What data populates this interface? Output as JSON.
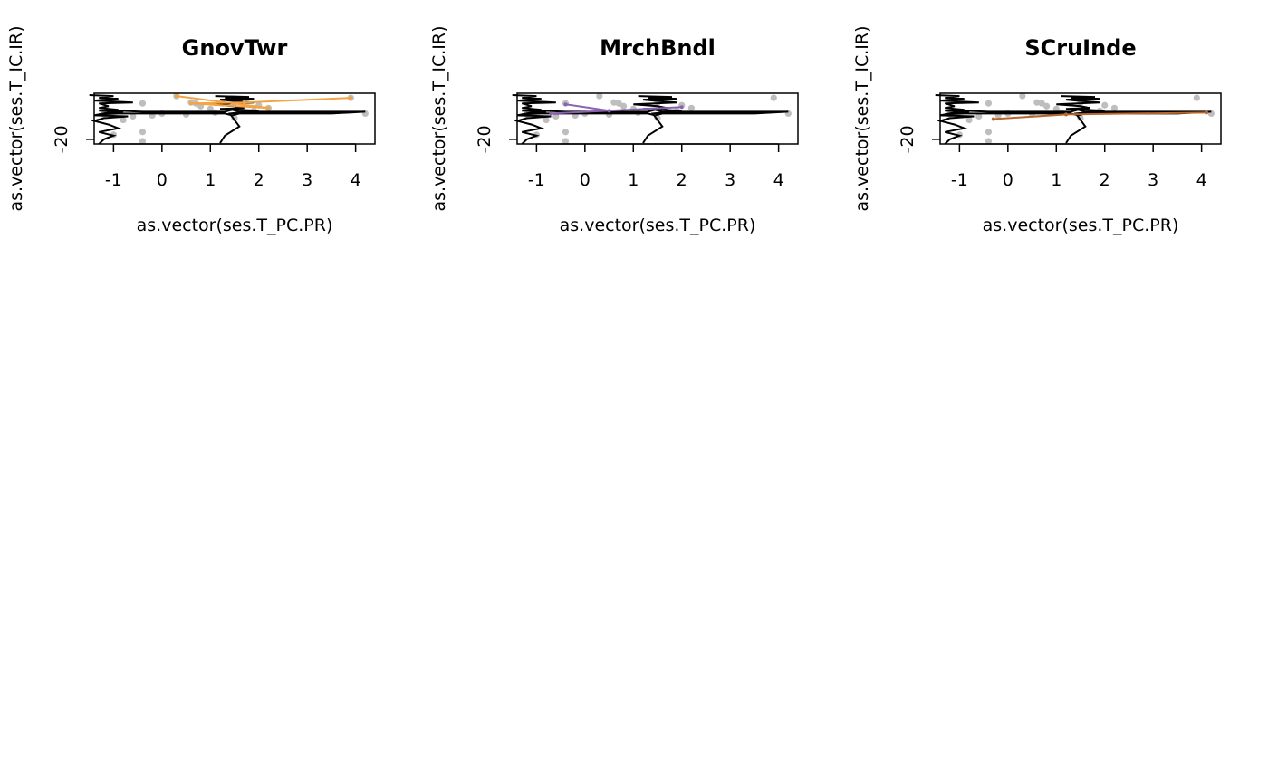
{
  "chart_data": [
    {
      "type": "scatter",
      "title": "GnovTwr",
      "xlabel": "as.vector(ses.T_PC.PR)",
      "ylabel": "as.vector(ses.T_IC.IR)",
      "xlim": [
        -1.4,
        4.4
      ],
      "ylim": [
        -25,
        30
      ],
      "x_ticks": [
        "-1",
        "0",
        "1",
        "2",
        "3",
        "4"
      ],
      "y_ticks": [
        "-20"
      ],
      "highlight_color": "#F5A443",
      "highlight_x": [
        0.3,
        2.2,
        0.6,
        1.7,
        3.9
      ],
      "highlight_y": [
        27,
        14,
        19,
        20,
        25
      ]
    },
    {
      "type": "scatter",
      "title": "MrchBndl",
      "xlabel": "as.vector(ses.T_PC.PR)",
      "ylabel": "as.vector(ses.T_IC.IR)",
      "xlim": [
        -1.4,
        4.4
      ],
      "ylim": [
        -25,
        30
      ],
      "x_ticks": [
        "-1",
        "0",
        "1",
        "2",
        "3",
        "4"
      ],
      "y_ticks": [
        "-20"
      ],
      "highlight_color": "#8A63B0",
      "highlight_x": [
        -0.4,
        0.5,
        2.0,
        -0.7
      ],
      "highlight_y": [
        18,
        11,
        15,
        8
      ]
    },
    {
      "type": "scatter",
      "title": "SCruInde",
      "xlabel": "as.vector(ses.T_PC.PR)",
      "ylabel": "as.vector(ses.T_IC.IR)",
      "xlim": [
        -1.4,
        4.4
      ],
      "ylim": [
        -25,
        30
      ],
      "x_ticks": [
        "-1",
        "0",
        "1",
        "2",
        "3",
        "4"
      ],
      "y_ticks": [
        "-20"
      ],
      "highlight_color": "#B8662E",
      "highlight_x": [
        -0.3,
        1.2,
        4.1
      ],
      "highlight_y": [
        2,
        7,
        9
      ]
    }
  ],
  "background_points": {
    "color": "#BEBEBE",
    "x": [
      0.3,
      1.5,
      0.6,
      0.7,
      -0.4,
      2.0,
      2.2,
      3.9,
      0.8,
      1.0,
      1.1,
      1.9,
      0.0,
      -0.2,
      -0.6,
      -1.2,
      -0.8,
      0.5,
      1.5,
      4.2,
      -0.4,
      -1.0,
      -0.4
    ],
    "y": [
      27,
      20,
      20,
      19,
      19,
      17,
      14,
      25,
      16,
      13,
      9,
      11,
      8,
      6,
      5,
      7,
      1,
      7,
      3,
      8,
      -12,
      -15,
      -22
    ]
  },
  "density_curves": {
    "color": "#000000",
    "left": {
      "x": [
        -1.5,
        -1.0,
        -1.3,
        -0.9,
        -1.4,
        -0.6,
        -1.3,
        -1.1,
        -1.3,
        -0.9,
        -1.3,
        -0.8,
        -1.2,
        -1.4,
        -0.7,
        -1.2,
        -1.4,
        -1.1,
        -0.9,
        -1.3,
        -1.0,
        -1.2,
        -1.3
      ],
      "y": [
        28,
        27,
        25,
        24,
        22,
        20,
        19,
        16,
        14,
        12,
        11,
        10,
        8,
        6,
        5,
        3,
        0,
        -4,
        -8,
        -12,
        -16,
        -20,
        -25
      ]
    },
    "right": {
      "x": [
        1.1,
        1.8,
        1.3,
        1.9,
        1.2,
        1.4,
        1.9,
        1.0,
        1.5,
        1.7,
        1.2,
        2.0,
        1.4,
        1.6,
        1.3,
        1.2
      ],
      "y": [
        27,
        26,
        25,
        24,
        23,
        22,
        20,
        18,
        16,
        14,
        13,
        11,
        8,
        -6,
        -16,
        -24
      ]
    },
    "horizontal": {
      "x": [
        -1.3,
        -0.9,
        -0.4,
        0.1,
        0.6,
        1.0,
        1.3,
        1.45,
        1.6,
        2.0,
        2.5,
        3.0,
        3.5,
        4.2,
        3.5,
        3.0,
        2.5,
        2.0,
        1.6,
        1.45,
        1.3,
        1.0,
        0.6,
        0.1,
        -0.4,
        -0.9,
        -1.3
      ],
      "y": [
        7,
        11,
        10,
        10,
        10,
        10,
        10,
        12,
        10,
        10,
        10,
        10,
        10,
        10,
        8,
        8,
        8,
        8,
        8,
        6,
        8,
        8,
        8,
        8,
        8,
        8,
        7
      ]
    }
  }
}
